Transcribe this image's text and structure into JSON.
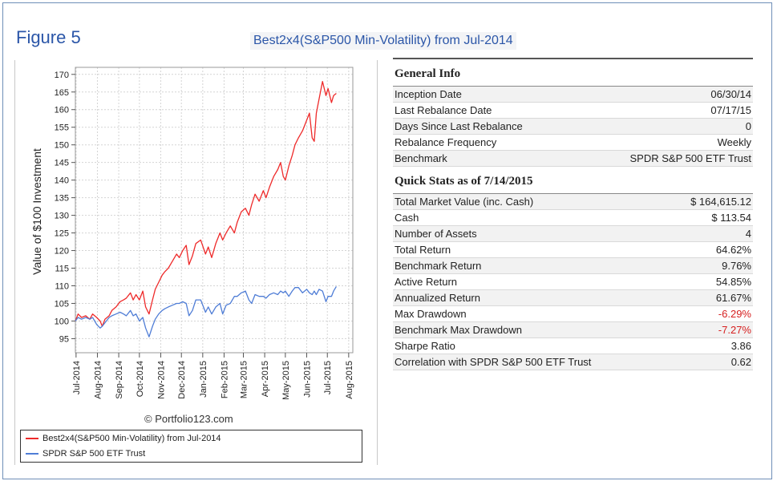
{
  "figure_label": "Figure 5",
  "figure_title": "Best2x4(S&P500 Min-Volatility) from Jul-2014",
  "credit": "© Portfolio123.com",
  "chart_data": {
    "type": "line",
    "ylabel": "Value of $100 Investment",
    "xlabel": "",
    "ylim": [
      91,
      172
    ],
    "yticks": [
      95,
      100,
      105,
      110,
      115,
      120,
      125,
      130,
      135,
      140,
      145,
      150,
      155,
      160,
      165,
      170
    ],
    "x_range": [
      "2014-06-30",
      "2015-08-07"
    ],
    "xticks": [
      {
        "date": "2014-07-01",
        "label": "Jul-2014"
      },
      {
        "date": "2014-08-01",
        "label": "Aug-2014"
      },
      {
        "date": "2014-09-01",
        "label": "Sep-2014"
      },
      {
        "date": "2014-10-01",
        "label": "Oct-2014"
      },
      {
        "date": "2014-11-01",
        "label": "Nov-2014"
      },
      {
        "date": "2014-12-01",
        "label": "Dec-2014"
      },
      {
        "date": "2015-01-01",
        "label": "Jan-2015"
      },
      {
        "date": "2015-02-01",
        "label": "Feb-2015"
      },
      {
        "date": "2015-03-01",
        "label": "Mar-2015"
      },
      {
        "date": "2015-04-01",
        "label": "Apr-2015"
      },
      {
        "date": "2015-05-01",
        "label": "May-2015"
      },
      {
        "date": "2015-06-01",
        "label": "Jun-2015"
      },
      {
        "date": "2015-07-01",
        "label": "Jul-2015"
      },
      {
        "date": "2015-08-01",
        "label": "Aug-2015"
      }
    ],
    "grid": true,
    "legend_position": "bottom",
    "series": [
      {
        "name": "Best2x4(S&P500 Min-Volatility) from Jul-2014",
        "color": "#ee2a2a",
        "points": [
          [
            "2014-06-30",
            100
          ],
          [
            "2014-07-04",
            102
          ],
          [
            "2014-07-09",
            101
          ],
          [
            "2014-07-15",
            101.5
          ],
          [
            "2014-07-21",
            100.5
          ],
          [
            "2014-07-25",
            102
          ],
          [
            "2014-07-31",
            101
          ],
          [
            "2014-08-05",
            100
          ],
          [
            "2014-08-08",
            98.5
          ],
          [
            "2014-08-12",
            100.5
          ],
          [
            "2014-08-18",
            101.5
          ],
          [
            "2014-08-22",
            103
          ],
          [
            "2014-08-28",
            104
          ],
          [
            "2014-09-03",
            105.5
          ],
          [
            "2014-09-08",
            106
          ],
          [
            "2014-09-12",
            106.5
          ],
          [
            "2014-09-18",
            108
          ],
          [
            "2014-09-22",
            106
          ],
          [
            "2014-09-26",
            107.5
          ],
          [
            "2014-10-01",
            106
          ],
          [
            "2014-10-06",
            108.5
          ],
          [
            "2014-10-10",
            104
          ],
          [
            "2014-10-15",
            102
          ],
          [
            "2014-10-20",
            106
          ],
          [
            "2014-10-24",
            109
          ],
          [
            "2014-10-29",
            111
          ],
          [
            "2014-11-03",
            113
          ],
          [
            "2014-11-07",
            114
          ],
          [
            "2014-11-12",
            115
          ],
          [
            "2014-11-18",
            117
          ],
          [
            "2014-11-24",
            119
          ],
          [
            "2014-11-28",
            118
          ],
          [
            "2014-12-03",
            120
          ],
          [
            "2014-12-08",
            121.5
          ],
          [
            "2014-12-12",
            116
          ],
          [
            "2014-12-17",
            118.5
          ],
          [
            "2014-12-22",
            122
          ],
          [
            "2014-12-29",
            123
          ],
          [
            "2015-01-05",
            119
          ],
          [
            "2015-01-09",
            121
          ],
          [
            "2015-01-14",
            118
          ],
          [
            "2015-01-20",
            122
          ],
          [
            "2015-01-26",
            125
          ],
          [
            "2015-01-30",
            123
          ],
          [
            "2015-02-04",
            125
          ],
          [
            "2015-02-10",
            127
          ],
          [
            "2015-02-16",
            125
          ],
          [
            "2015-02-20",
            128
          ],
          [
            "2015-02-26",
            131
          ],
          [
            "2015-03-04",
            132
          ],
          [
            "2015-03-09",
            130
          ],
          [
            "2015-03-13",
            133
          ],
          [
            "2015-03-18",
            136
          ],
          [
            "2015-03-24",
            134
          ],
          [
            "2015-03-30",
            137
          ],
          [
            "2015-04-03",
            135
          ],
          [
            "2015-04-08",
            138
          ],
          [
            "2015-04-14",
            141
          ],
          [
            "2015-04-20",
            143
          ],
          [
            "2015-04-24",
            145
          ],
          [
            "2015-04-28",
            141
          ],
          [
            "2015-05-01",
            140
          ],
          [
            "2015-05-06",
            144
          ],
          [
            "2015-05-11",
            147
          ],
          [
            "2015-05-15",
            150
          ],
          [
            "2015-05-20",
            152
          ],
          [
            "2015-05-26",
            154
          ],
          [
            "2015-06-01",
            157
          ],
          [
            "2015-06-05",
            159
          ],
          [
            "2015-06-09",
            152
          ],
          [
            "2015-06-12",
            151
          ],
          [
            "2015-06-15",
            159
          ],
          [
            "2015-06-19",
            163
          ],
          [
            "2015-06-24",
            168
          ],
          [
            "2015-06-29",
            164
          ],
          [
            "2015-07-02",
            166
          ],
          [
            "2015-07-07",
            162
          ],
          [
            "2015-07-10",
            164
          ],
          [
            "2015-07-14",
            164.6
          ]
        ]
      },
      {
        "name": "SPDR S&P 500 ETF Trust",
        "color": "#4f7dd6",
        "points": [
          [
            "2014-06-30",
            100
          ],
          [
            "2014-07-04",
            101
          ],
          [
            "2014-07-09",
            100.5
          ],
          [
            "2014-07-15",
            101
          ],
          [
            "2014-07-21",
            100.5
          ],
          [
            "2014-07-25",
            101
          ],
          [
            "2014-07-31",
            99
          ],
          [
            "2014-08-05",
            98
          ],
          [
            "2014-08-08",
            98.5
          ],
          [
            "2014-08-12",
            99.5
          ],
          [
            "2014-08-18",
            101
          ],
          [
            "2014-08-22",
            101.5
          ],
          [
            "2014-08-28",
            102
          ],
          [
            "2014-09-03",
            102.5
          ],
          [
            "2014-09-08",
            102
          ],
          [
            "2014-09-12",
            101.5
          ],
          [
            "2014-09-18",
            103
          ],
          [
            "2014-09-22",
            101.5
          ],
          [
            "2014-09-26",
            102
          ],
          [
            "2014-10-01",
            100
          ],
          [
            "2014-10-06",
            101
          ],
          [
            "2014-10-10",
            98
          ],
          [
            "2014-10-15",
            95.5
          ],
          [
            "2014-10-20",
            98.5
          ],
          [
            "2014-10-24",
            100.5
          ],
          [
            "2014-10-29",
            102
          ],
          [
            "2014-11-03",
            103
          ],
          [
            "2014-11-07",
            103.5
          ],
          [
            "2014-11-12",
            104
          ],
          [
            "2014-11-18",
            104.5
          ],
          [
            "2014-11-24",
            105
          ],
          [
            "2014-11-28",
            105
          ],
          [
            "2014-12-03",
            105.5
          ],
          [
            "2014-12-08",
            105
          ],
          [
            "2014-12-12",
            101.5
          ],
          [
            "2014-12-17",
            103
          ],
          [
            "2014-12-22",
            106
          ],
          [
            "2014-12-29",
            106
          ],
          [
            "2015-01-05",
            102.5
          ],
          [
            "2015-01-09",
            104
          ],
          [
            "2015-01-14",
            102
          ],
          [
            "2015-01-20",
            104
          ],
          [
            "2015-01-26",
            105
          ],
          [
            "2015-01-30",
            102
          ],
          [
            "2015-02-04",
            104.5
          ],
          [
            "2015-02-10",
            105
          ],
          [
            "2015-02-16",
            107
          ],
          [
            "2015-02-20",
            107
          ],
          [
            "2015-02-26",
            108
          ],
          [
            "2015-03-04",
            108.5
          ],
          [
            "2015-03-09",
            106
          ],
          [
            "2015-03-13",
            105
          ],
          [
            "2015-03-18",
            107.5
          ],
          [
            "2015-03-24",
            107
          ],
          [
            "2015-03-30",
            107
          ],
          [
            "2015-04-03",
            106.5
          ],
          [
            "2015-04-08",
            107.5
          ],
          [
            "2015-04-14",
            108
          ],
          [
            "2015-04-20",
            107.5
          ],
          [
            "2015-04-24",
            108.5
          ],
          [
            "2015-04-28",
            108
          ],
          [
            "2015-05-01",
            108.5
          ],
          [
            "2015-05-06",
            107
          ],
          [
            "2015-05-11",
            108.5
          ],
          [
            "2015-05-15",
            109.5
          ],
          [
            "2015-05-20",
            109.5
          ],
          [
            "2015-05-26",
            108
          ],
          [
            "2015-06-01",
            109
          ],
          [
            "2015-06-05",
            108
          ],
          [
            "2015-06-09",
            107.5
          ],
          [
            "2015-06-12",
            108.5
          ],
          [
            "2015-06-15",
            107.5
          ],
          [
            "2015-06-19",
            109
          ],
          [
            "2015-06-24",
            108.5
          ],
          [
            "2015-06-29",
            105.5
          ],
          [
            "2015-07-02",
            107
          ],
          [
            "2015-07-07",
            107
          ],
          [
            "2015-07-10",
            108.5
          ],
          [
            "2015-07-14",
            109.8
          ]
        ]
      }
    ]
  },
  "general_info": {
    "title": "General Info",
    "rows": [
      {
        "label": "Inception Date",
        "value": "06/30/14"
      },
      {
        "label": "Last Rebalance Date",
        "value": "07/17/15"
      },
      {
        "label": "Days Since Last Rebalance",
        "value": "0"
      },
      {
        "label": "Rebalance Frequency",
        "value": "Weekly"
      },
      {
        "label": "Benchmark",
        "value": "SPDR S&P 500 ETF Trust"
      }
    ]
  },
  "quick_stats": {
    "title": "Quick Stats as of 7/14/2015",
    "rows": [
      {
        "label": "Total Market Value (inc. Cash)",
        "value": "$ 164,615.12"
      },
      {
        "label": "Cash",
        "value": "$ 113.54"
      },
      {
        "label": "Number of Assets",
        "value": "4"
      },
      {
        "label": "Total Return",
        "value": "64.62%"
      },
      {
        "label": "Benchmark Return",
        "value": "9.76%"
      },
      {
        "label": "Active Return",
        "value": "54.85%"
      },
      {
        "label": "Annualized Return",
        "value": "61.67%"
      },
      {
        "label": "Max Drawdown",
        "value": "-6.29%",
        "negative": true
      },
      {
        "label": "Benchmark Max Drawdown",
        "value": "-7.27%",
        "negative": true
      },
      {
        "label": "Sharpe Ratio",
        "value": "3.86"
      },
      {
        "label": "Correlation with SPDR S&P 500 ETF Trust",
        "value": "0.62"
      }
    ]
  }
}
